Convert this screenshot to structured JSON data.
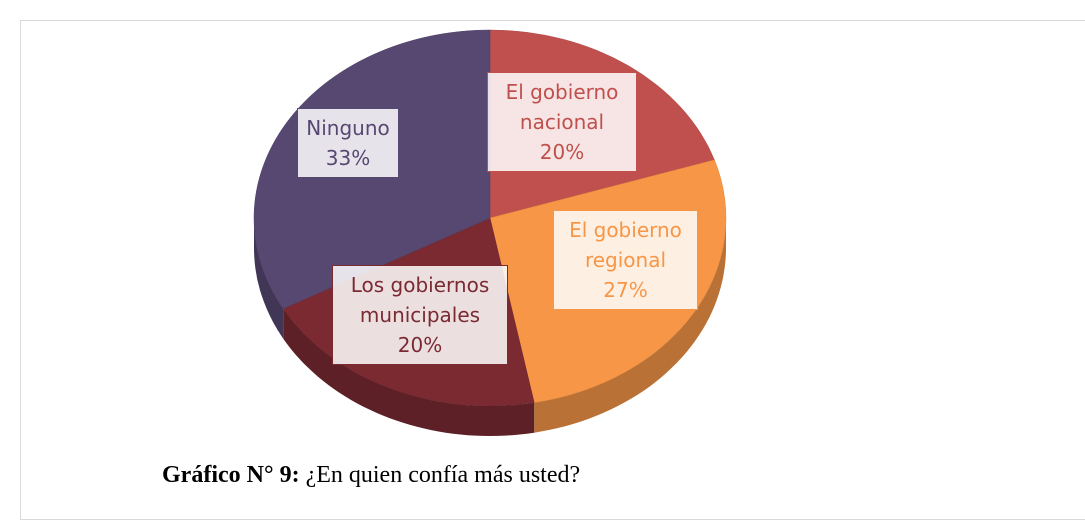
{
  "chart_data": {
    "type": "pie",
    "categories": [
      "El gobierno nacional",
      "El gobierno regional",
      "Los gobiernos municipales",
      "Ninguno"
    ],
    "values": [
      20,
      27,
      20,
      33
    ],
    "value_labels": [
      "20%",
      "27%",
      "20%",
      "33%"
    ],
    "colors": [
      "#c0504d",
      "#f79646",
      "#7b2a32",
      "#574872"
    ],
    "caption": {
      "label": "Gráfico N° 9:",
      "text": "¿En quien confía más usted?"
    }
  }
}
